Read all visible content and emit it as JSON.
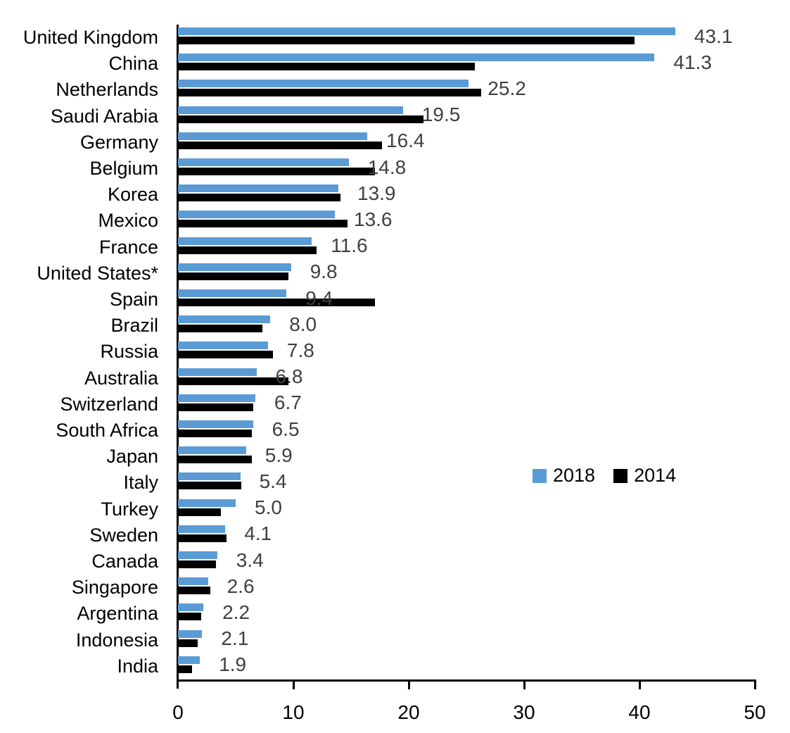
{
  "chart_data": {
    "type": "bar",
    "orientation": "horizontal",
    "title": "",
    "xlabel": "",
    "ylabel": "",
    "xlim": [
      0,
      50
    ],
    "x_ticks": [
      "0",
      "10",
      "20",
      "30",
      "40",
      "50"
    ],
    "grid": false,
    "legend_position": "middle-right",
    "data_labels_on_series": "2018",
    "data_label_color": "#404040",
    "categories": [
      "United Kingdom",
      "China",
      "Netherlands",
      "Saudi Arabia",
      "Germany",
      "Belgium",
      "Korea",
      "Mexico",
      "France",
      "United States*",
      "Spain",
      "Brazil",
      "Russia",
      "Australia",
      "Switzerland",
      "South Africa",
      "Japan",
      "Italy",
      "Turkey",
      "Sweden",
      "Canada",
      "Singapore",
      "Argentina",
      "Indonesia",
      "India"
    ],
    "series": [
      {
        "name": "2018",
        "color": "#5B9BD5",
        "values": [
          43.1,
          41.3,
          25.2,
          19.5,
          16.4,
          14.8,
          13.9,
          13.6,
          11.6,
          9.8,
          9.4,
          8.0,
          7.8,
          6.8,
          6.7,
          6.5,
          5.9,
          5.4,
          5.0,
          4.1,
          3.4,
          2.6,
          2.2,
          2.1,
          1.9
        ]
      },
      {
        "name": "2014",
        "color": "#000000",
        "values": [
          39.6,
          25.7,
          26.3,
          21.3,
          17.7,
          17.1,
          14.1,
          14.7,
          12.0,
          9.6,
          17.1,
          7.3,
          8.2,
          9.6,
          6.5,
          6.4,
          6.4,
          5.5,
          3.7,
          4.2,
          3.3,
          2.8,
          2.0,
          1.7,
          1.2
        ]
      }
    ],
    "data_labels": [
      "43.1",
      "41.3",
      "25.2",
      "19.5",
      "16.4",
      "14.8",
      "13.9",
      "13.6",
      "11.6",
      "9.8",
      "9.4",
      "8.0",
      "7.8",
      "6.8",
      "6.7",
      "6.5",
      "5.9",
      "5.4",
      "5.0",
      "4.1",
      "3.4",
      "2.6",
      "2.2",
      "2.1",
      "1.9"
    ]
  },
  "legend": {
    "items": [
      {
        "label": "2018",
        "color": "#5B9BD5"
      },
      {
        "label": "2014",
        "color": "#000000"
      }
    ]
  }
}
